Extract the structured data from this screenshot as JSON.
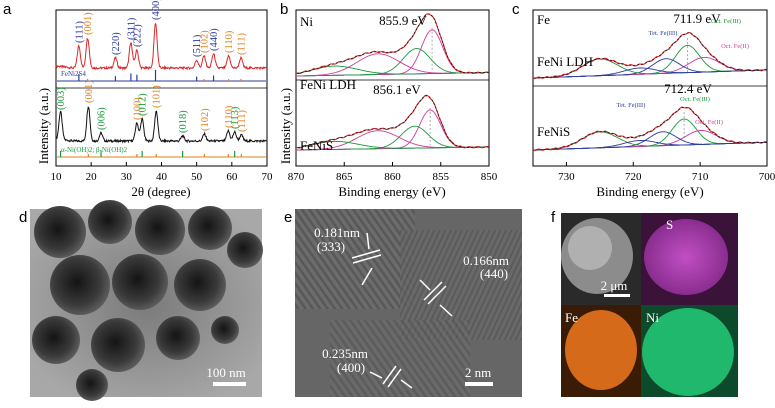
{
  "panel_letters": {
    "a": "a",
    "b": "b",
    "c": "c",
    "d": "d",
    "e": "e",
    "f": "f"
  },
  "chart_data": [
    {
      "id": "a",
      "type": "line",
      "title": "",
      "xlabel": "2θ (degree)",
      "ylabel": "Intensity (a.u.)",
      "xlim": [
        10,
        70
      ],
      "xticks": [
        10,
        20,
        30,
        40,
        50,
        60,
        70
      ],
      "series": [
        {
          "name": "FeNi2S4 (red, top)"
        },
        {
          "name": "FeNi LDH (black, bottom)"
        }
      ],
      "top_ref_label": "FeNi2S4",
      "bottom_ref_label": "α-Ni(OH)2; β-Ni(OH)2",
      "top_peaks": [
        {
          "label": "(111)",
          "x": 16.5,
          "color": "#2a3aa0"
        },
        {
          "label": "(001)",
          "x": 19.0,
          "color": "#e0821a"
        },
        {
          "label": "(220)",
          "x": 26.9,
          "color": "#2a3aa0"
        },
        {
          "label": "(311)",
          "x": 31.3,
          "color": "#2a3aa0"
        },
        {
          "label": "(222)",
          "x": 33.0,
          "color": "#2a3aa0"
        },
        {
          "label": "(400)",
          "x": 38.3,
          "color": "#2a3aa0"
        },
        {
          "label": "(511)",
          "x": 50.0,
          "color": "#2a3aa0"
        },
        {
          "label": "(102)",
          "x": 52.1,
          "color": "#e0821a"
        },
        {
          "label": "(440)",
          "x": 54.8,
          "color": "#2a3aa0"
        },
        {
          "label": "(110)",
          "x": 59.1,
          "color": "#e0821a"
        },
        {
          "label": "(111)",
          "x": 62.6,
          "color": "#e0821a"
        }
      ],
      "bottom_peaks": [
        {
          "label": "(003)",
          "x": 11.3,
          "color": "#1a9a3a"
        },
        {
          "label": "(001)",
          "x": 19.2,
          "color": "#e0821a"
        },
        {
          "label": "(006)",
          "x": 22.8,
          "color": "#1a9a3a"
        },
        {
          "label": "(100)",
          "x": 33.0,
          "color": "#e0821a"
        },
        {
          "label": "(012)",
          "x": 34.5,
          "color": "#1a9a3a"
        },
        {
          "label": "(101)",
          "x": 38.5,
          "color": "#e0821a"
        },
        {
          "label": "(018)",
          "x": 46.0,
          "color": "#1a9a3a"
        },
        {
          "label": "(102)",
          "x": 52.2,
          "color": "#e0821a"
        },
        {
          "label": "(110)",
          "x": 59.0,
          "color": "#e0821a"
        },
        {
          "label": "(113)",
          "x": 60.8,
          "color": "#1a9a3a"
        },
        {
          "label": "(111)",
          "x": 62.7,
          "color": "#e0821a"
        }
      ]
    },
    {
      "id": "b",
      "type": "line",
      "xlabel": "Binding energy (eV)",
      "ylabel": "Intensity (a.u.)",
      "xlim": [
        870,
        850
      ],
      "xticks": [
        870,
        865,
        860,
        855,
        850
      ],
      "element": "Ni",
      "series": [
        {
          "name": "FeNi LDH",
          "peak": "855.9 eV"
        },
        {
          "name": "FeNiS",
          "peak": "856.1 eV"
        }
      ]
    },
    {
      "id": "c",
      "type": "line",
      "xlabel": "Binding energy (eV)",
      "ylabel": "",
      "xlim": [
        735,
        700
      ],
      "xticks": [
        730,
        720,
        710,
        700
      ],
      "element": "Fe",
      "series": [
        {
          "name": "FeNi LDH",
          "peak": "711.9 eV"
        },
        {
          "name": "FeNiS",
          "peak": "712.4 eV"
        }
      ],
      "component_labels": {
        "tet": "Tet. Fe(III)",
        "oct3": "Oct. Fe(III)",
        "oct2": "Oct. Fe(II)"
      }
    }
  ],
  "panel_d": {
    "scalebar": "100 nm"
  },
  "panel_e": {
    "scalebar": "2 nm",
    "d1_value": "0.181nm",
    "d1_plane": "(333)",
    "d2_value": "0.166nm",
    "d2_plane": "(440)",
    "d3_value": "0.235nm",
    "d3_plane": "(400)"
  },
  "panel_f": {
    "scalebar": "2 μm",
    "S": "S",
    "Fe": "Fe",
    "Ni": "Ni"
  },
  "colors": {
    "blue": "#2a3aa0",
    "orange": "#e0821a",
    "green": "#1a9a3a",
    "red": "#d8282a",
    "pink": "#d03a9a"
  }
}
